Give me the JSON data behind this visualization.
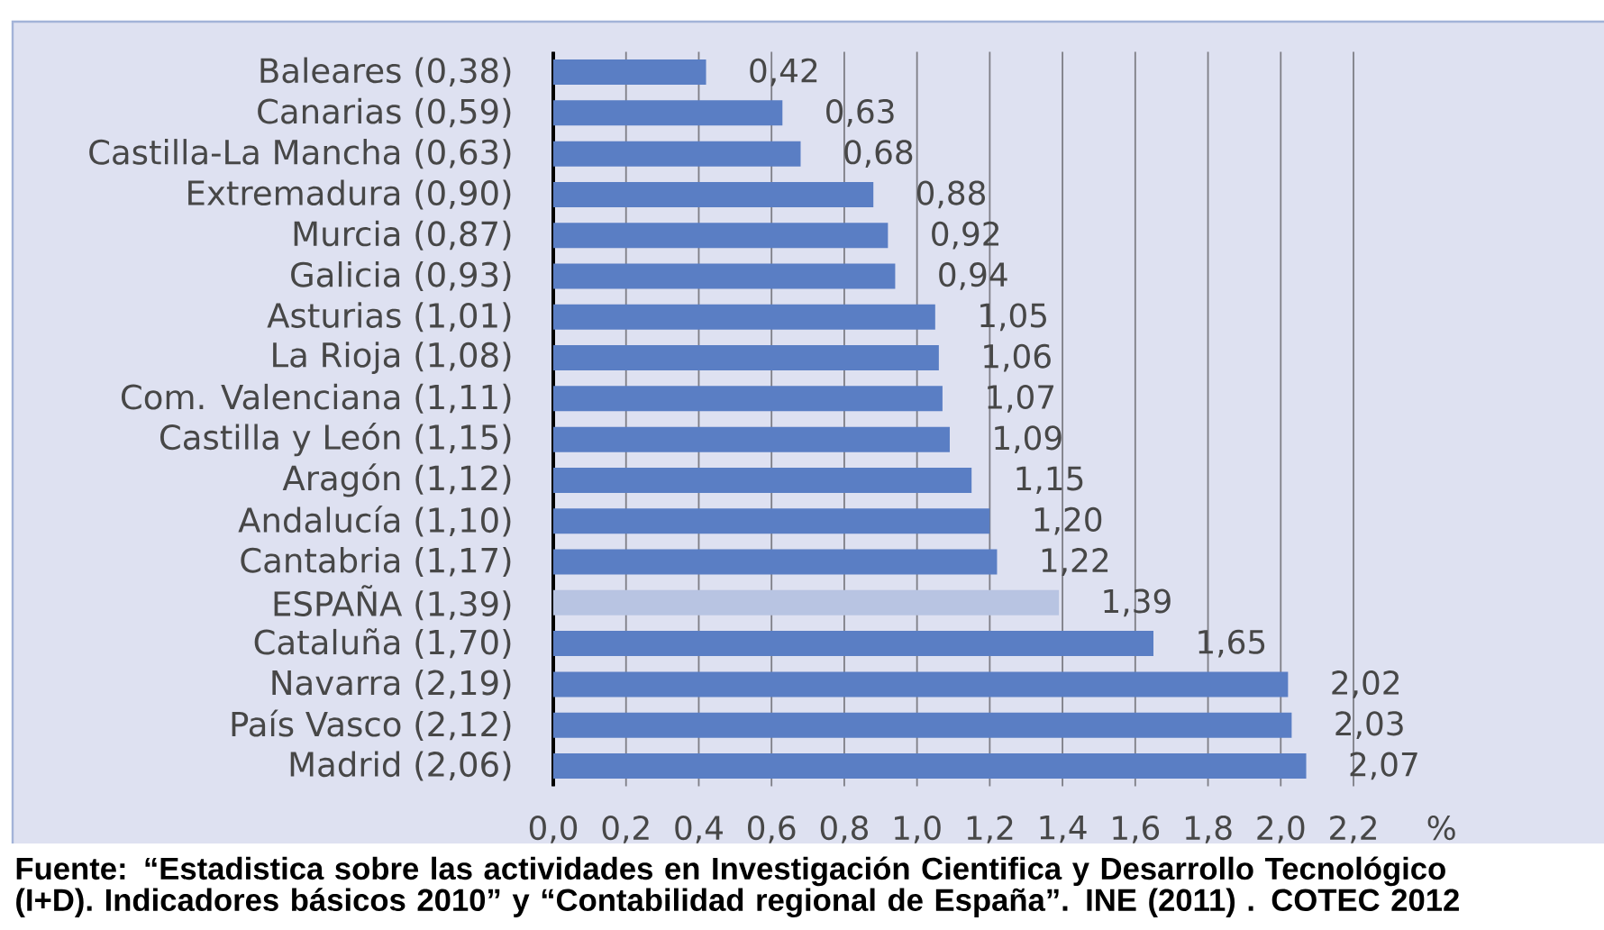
{
  "chart_data": {
    "type": "bar",
    "orientation": "horizontal",
    "categories": [
      "Baleares (0,38)",
      "Canarias (0,59)",
      "Castilla-La Mancha (0,63)",
      "Extremadura (0,90)",
      "Murcia (0,87)",
      "Galicia (0,93)",
      "Asturias (1,01)",
      "La Rioja (1,08)",
      "Com. Valenciana (1,11)",
      "Castilla y León (1,15)",
      "Aragón (1,12)",
      "Andalucía (1,10)",
      "Cantabria (1,17)",
      "ESPAÑA (1,39)",
      "Cataluña (1,70)",
      "Navarra (2,19)",
      "País Vasco (2,12)",
      "Madrid (2,06)"
    ],
    "values": [
      0.42,
      0.63,
      0.68,
      0.88,
      0.92,
      0.94,
      1.05,
      1.06,
      1.07,
      1.09,
      1.15,
      1.2,
      1.22,
      1.39,
      1.65,
      2.02,
      2.03,
      2.07
    ],
    "colors": [
      "#5a7ec4",
      "#5a7ec4",
      "#5a7ec4",
      "#5a7ec4",
      "#5a7ec4",
      "#5a7ec4",
      "#5a7ec4",
      "#5a7ec4",
      "#5a7ec4",
      "#5a7ec4",
      "#5a7ec4",
      "#5a7ec4",
      "#5a7ec4",
      "#b8c4e2",
      "#5a7ec4",
      "#5a7ec4",
      "#5a7ec4",
      "#5a7ec4"
    ],
    "value_labels": [
      "0,42",
      "0,63",
      "0,68",
      "0,88",
      "0,92",
      "0,94",
      "1,05",
      "1,06",
      "1,07",
      "1,09",
      "1,15",
      "1,20",
      "1,22",
      "1,39",
      "1,65",
      "2,02",
      "2,03",
      "2,07"
    ],
    "xlim": [
      0,
      2.2
    ],
    "xticks": [
      {
        "value": 0,
        "label": "0,0"
      },
      {
        "value": 0.2,
        "label": "0,2"
      },
      {
        "value": 0.4,
        "label": "0,4"
      },
      {
        "value": 0.6,
        "label": "0,6"
      },
      {
        "value": 0.8,
        "label": "0,8"
      },
      {
        "value": 1.0,
        "label": "1,0"
      },
      {
        "value": 1.2,
        "label": "1,2"
      },
      {
        "value": 1.4,
        "label": "1,4"
      },
      {
        "value": 1.6,
        "label": "1,6"
      },
      {
        "value": 1.8,
        "label": "1,8"
      },
      {
        "value": 2.0,
        "label": "2,0"
      },
      {
        "value": 2.2,
        "label": "2,2"
      }
    ],
    "xlabel": "%",
    "grid": "x",
    "annotations": [
      "Fuente: “Estadistica sobre las actividades en Investigación Cientifica y Desarrollo Tecnológico (I+D). Indicadores básicos 2010” y “Contabilidad regional de España”. INE (2011) . COTEC 2012"
    ]
  }
}
